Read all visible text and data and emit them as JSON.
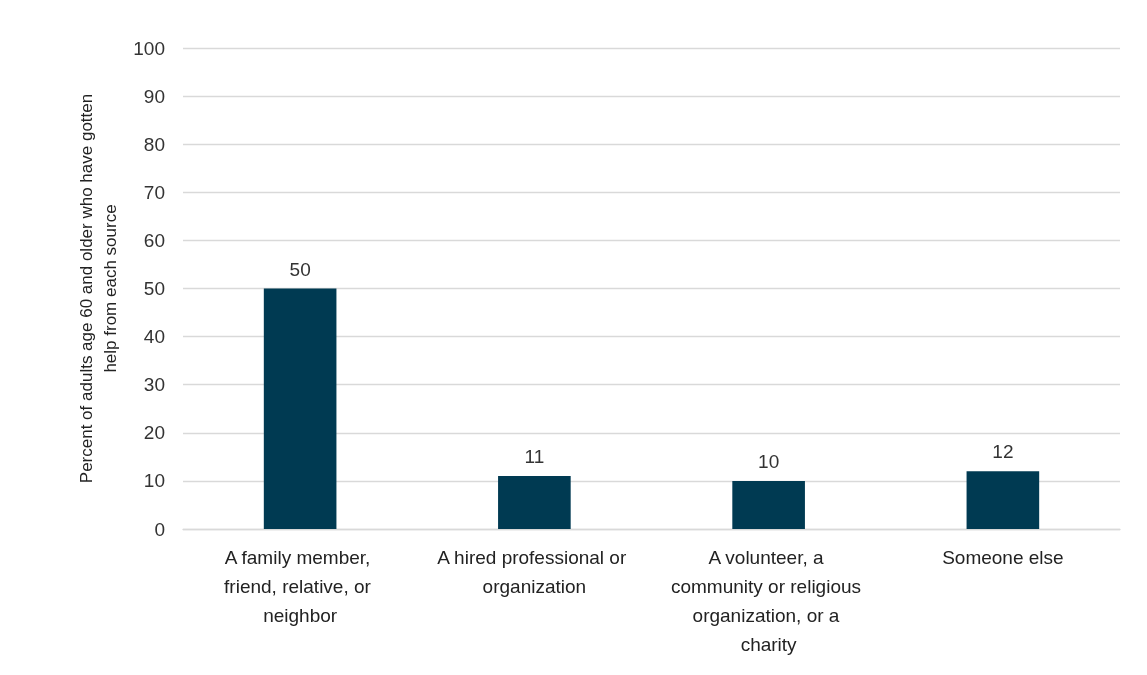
{
  "chart_data": {
    "type": "bar",
    "ylabel": "Percent of adults age 60 and older who have gotten help from each source",
    "categories": [
      "A family member, friend, relative, or neighbor",
      "A hired professional or organization",
      "A volunteer, a community or religious organization, or a charity",
      "Someone else"
    ],
    "values": [
      50,
      11,
      10,
      12
    ],
    "color": "#003a52",
    "ylim": [
      0,
      100
    ],
    "yticks": [
      0,
      10,
      20,
      30,
      40,
      50,
      60,
      70,
      80,
      90,
      100
    ],
    "grid": "y",
    "data_labels": true
  }
}
